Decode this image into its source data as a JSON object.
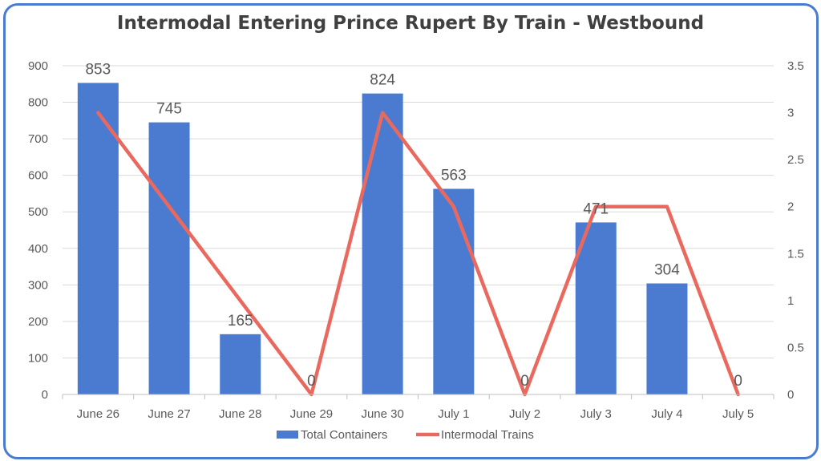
{
  "chart_data": {
    "type": "bar",
    "title": "Intermodal Entering Prince Rupert By Train - Westbound",
    "categories": [
      "June 26",
      "June 27",
      "June 28",
      "June 29",
      "June 30",
      "July 1",
      "July 2",
      "July 3",
      "July 4",
      "July 5"
    ],
    "series": [
      {
        "name": "Total Containers",
        "type": "bar",
        "axis": "left",
        "color": "#4a7bd0",
        "values": [
          853,
          745,
          165,
          0,
          824,
          563,
          0,
          471,
          304,
          0
        ],
        "labels": [
          "853",
          "745",
          "165",
          "0",
          "824",
          "563",
          "0",
          "471",
          "304",
          "0"
        ]
      },
      {
        "name": "Intermodal Trains",
        "type": "line",
        "axis": "right",
        "color": "#e9695f",
        "values": [
          3,
          2,
          1,
          0,
          3,
          2,
          0,
          2,
          2,
          0
        ]
      }
    ],
    "y_left": {
      "min": 0,
      "max": 900,
      "ticks": [
        "0",
        "100",
        "200",
        "300",
        "400",
        "500",
        "600",
        "700",
        "800",
        "900"
      ]
    },
    "y_right": {
      "min": 0,
      "max": 3.5,
      "ticks": [
        "0",
        "0.5",
        "1",
        "1.5",
        "2",
        "2.5",
        "3",
        "3.5"
      ]
    },
    "grid": true,
    "legend": "bottom"
  }
}
